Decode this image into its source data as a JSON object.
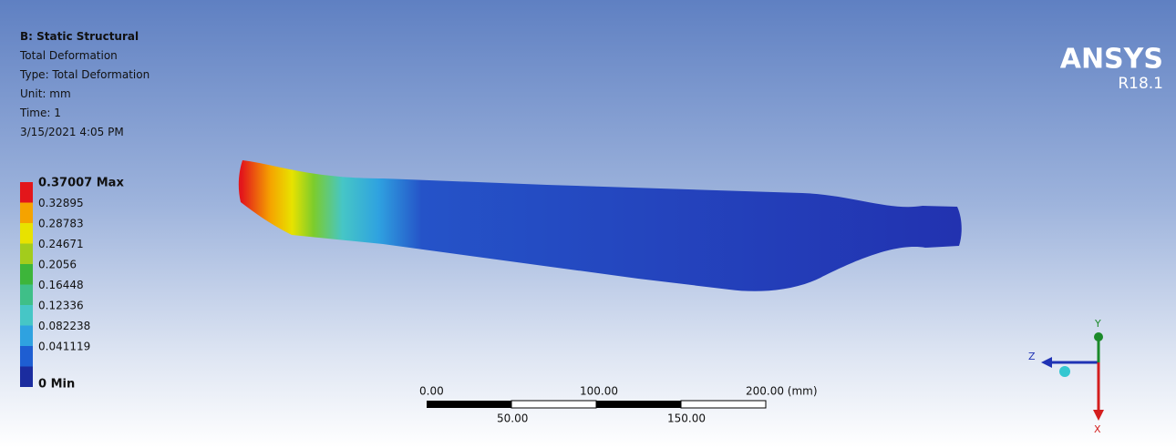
{
  "header": {
    "lines": [
      "B: Static Structural",
      "Total Deformation",
      "Type: Total Deformation",
      "Unit: mm",
      "Time: 1",
      "3/15/2021 4:05 PM"
    ]
  },
  "legend": {
    "labels": [
      "0.37007 Max",
      "0.32895",
      "0.28783",
      "0.24671",
      "0.2056",
      "0.16448",
      "0.12336",
      "0.082238",
      "0.041119",
      "0 Min"
    ],
    "colors": [
      "#e3161b",
      "#f5a300",
      "#e8e200",
      "#a3cc1c",
      "#3db53a",
      "#3fbf88",
      "#46c6c6",
      "#2fa2e0",
      "#1e5ed2",
      "#1b2c9f"
    ]
  },
  "logo": {
    "name": "ANSYS",
    "version": "R18.1"
  },
  "scale_bar": {
    "top_labels": [
      "0.00",
      "100.00",
      "200.00 (mm)"
    ],
    "bottom_labels": [
      "50.00",
      "150.00"
    ]
  },
  "triad": {
    "axes": [
      "Z",
      "Y",
      "X"
    ]
  }
}
